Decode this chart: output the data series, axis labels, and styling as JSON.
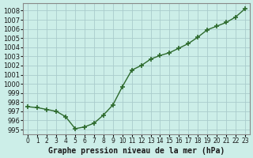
{
  "x": [
    0,
    1,
    2,
    3,
    4,
    5,
    6,
    7,
    8,
    9,
    10,
    11,
    12,
    13,
    14,
    15,
    16,
    17,
    18,
    19,
    20,
    21,
    22,
    23
  ],
  "y": [
    997.5,
    997.4,
    997.2,
    997.0,
    996.4,
    995.1,
    995.3,
    995.7,
    996.6,
    997.7,
    999.7,
    1001.5,
    1002.0,
    1002.7,
    1003.1,
    1003.4,
    1003.9,
    1004.4,
    1005.1,
    1005.9,
    1006.3,
    1006.7,
    1007.3,
    1008.2
  ],
  "line_color": "#2d6a2d",
  "marker": "+",
  "marker_size": 4,
  "marker_lw": 1.2,
  "background_color": "#cceee8",
  "grid_color": "#aacccc",
  "ylabel_ticks": [
    995,
    996,
    997,
    998,
    999,
    1000,
    1001,
    1002,
    1003,
    1004,
    1005,
    1006,
    1007,
    1008
  ],
  "xlabel": "Graphe pression niveau de la mer (hPa)",
  "ylim": [
    994.5,
    1008.8
  ],
  "xlim": [
    -0.5,
    23.5
  ],
  "xtick_labels": [
    "0",
    "1",
    "2",
    "3",
    "4",
    "5",
    "6",
    "7",
    "8",
    "9",
    "10",
    "11",
    "12",
    "13",
    "14",
    "15",
    "16",
    "17",
    "18",
    "19",
    "20",
    "21",
    "22",
    "23"
  ],
  "title_color": "#1a1a1a",
  "axis_color": "#888888",
  "label_fontsize": 7.0,
  "tick_fontsize": 6.0,
  "line_width": 1.0
}
